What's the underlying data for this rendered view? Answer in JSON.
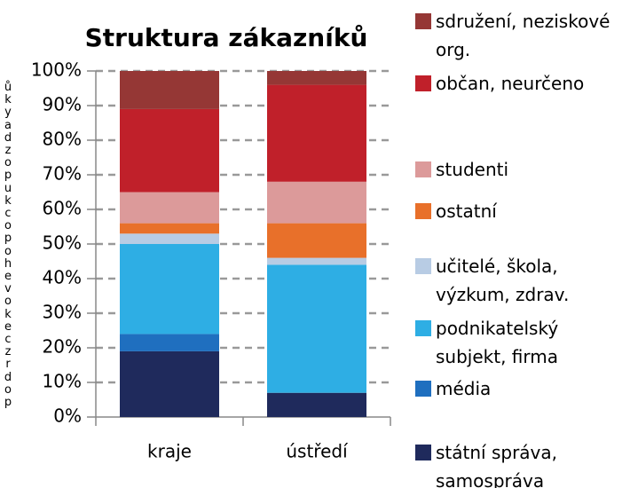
{
  "chart_data": {
    "type": "stacked_bar",
    "title": "Struktura zákazníků",
    "y_label": "ůkyadzopukcopohevokeczrdop",
    "categories": [
      "kraje",
      "ústředí"
    ],
    "series": [
      {
        "name": "státní správa, samospráva",
        "color": "#1f2a5c",
        "values": [
          19,
          7
        ]
      },
      {
        "name": "média",
        "color": "#1f6fbf",
        "values": [
          5,
          0
        ]
      },
      {
        "name": "podnikatelský subjekt, firma",
        "color": "#2eaee4",
        "values": [
          26,
          37
        ]
      },
      {
        "name": "učitelé, škola, výzkum, zdrav.",
        "color": "#b8cce4",
        "values": [
          3,
          2
        ]
      },
      {
        "name": "ostatní",
        "color": "#e8702a",
        "values": [
          3,
          10
        ]
      },
      {
        "name": "studenti",
        "color": "#dc9a9a",
        "values": [
          9,
          12
        ]
      },
      {
        "name": "občan, neurčeno",
        "color": "#c0202a",
        "values": [
          24,
          28
        ]
      },
      {
        "name": "sdružení, neziskové org.",
        "color": "#953735",
        "values": [
          11,
          4
        ]
      }
    ],
    "ylim": [
      0,
      100
    ],
    "yticks": [
      {
        "value": 0,
        "label": "0%"
      },
      {
        "value": 10,
        "label": "10%"
      },
      {
        "value": 20,
        "label": "20%"
      },
      {
        "value": 30,
        "label": "30%"
      },
      {
        "value": 40,
        "label": "40%"
      },
      {
        "value": 50,
        "label": "50%"
      },
      {
        "value": 60,
        "label": "60%"
      },
      {
        "value": 70,
        "label": "70%"
      },
      {
        "value": 80,
        "label": "80%"
      },
      {
        "value": 90,
        "label": "90%"
      },
      {
        "value": 100,
        "label": "100%"
      }
    ],
    "grid": true
  }
}
